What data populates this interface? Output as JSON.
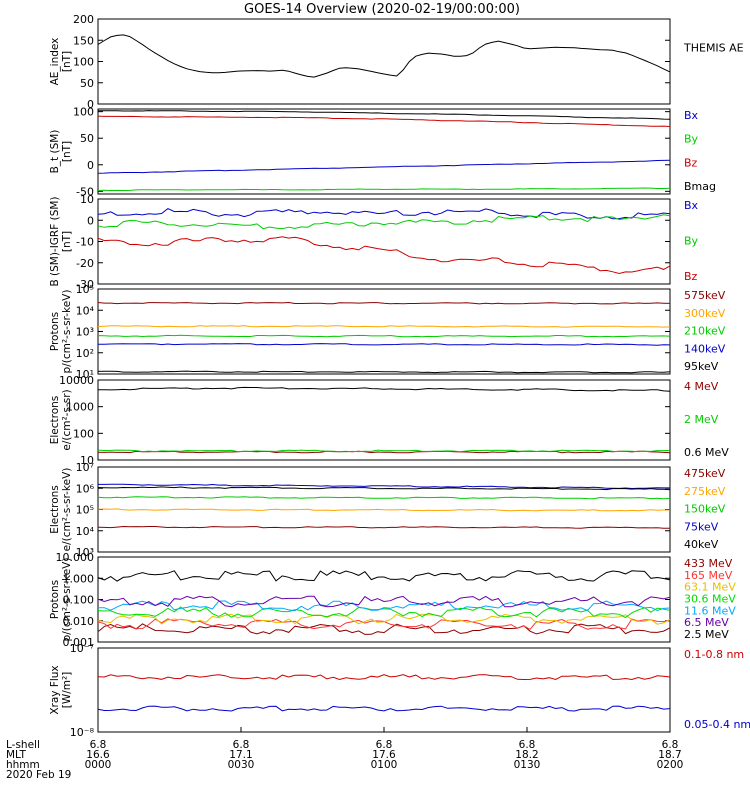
{
  "title": "GOES-14 Overview (2020-02-19/00:00:00)",
  "chart_data": [
    {
      "type": "line",
      "log": false,
      "ylabel": [
        "AE_index",
        "[nT]"
      ],
      "ylim": [
        0,
        200
      ],
      "yticks": [
        [
          0,
          "0"
        ],
        [
          50,
          "50"
        ],
        [
          100,
          "100"
        ],
        [
          150,
          "150"
        ],
        [
          200,
          "200"
        ]
      ],
      "series": [
        {
          "name": "THEMIS AE",
          "color": "#000000",
          "x": [
            0,
            3,
            6,
            9,
            12,
            15,
            18,
            21,
            24,
            27,
            30,
            33,
            36,
            39,
            42,
            45,
            48,
            51,
            54,
            57,
            60,
            63,
            66,
            69,
            72,
            75,
            78,
            81,
            84,
            87,
            90,
            93,
            96,
            99,
            102,
            105,
            108,
            111,
            114,
            117,
            120
          ],
          "y": [
            140,
            160,
            163,
            142,
            120,
            100,
            85,
            76,
            73,
            74,
            78,
            79,
            78,
            80,
            70,
            62,
            72,
            86,
            84,
            78,
            70,
            65,
            110,
            120,
            118,
            112,
            115,
            140,
            148,
            140,
            130,
            132,
            134,
            133,
            130,
            128,
            126,
            120,
            106,
            92,
            75
          ]
        }
      ]
    },
    {
      "type": "line",
      "log": false,
      "ylabel": [
        "B_t (SM)",
        "[nT]"
      ],
      "ylim": [
        -55,
        105
      ],
      "yticks": [
        [
          -50,
          "-50"
        ],
        [
          0,
          "0"
        ],
        [
          50,
          "50"
        ],
        [
          100,
          "100"
        ]
      ],
      "series": [
        {
          "name": "Bx",
          "color": "#0000cc",
          "x": [
            0,
            20,
            40,
            60,
            80,
            100,
            120
          ],
          "y": [
            -16,
            -12,
            -8,
            -4,
            0,
            4,
            8
          ]
        },
        {
          "name": "By",
          "color": "#00cc00",
          "x": [
            0,
            20,
            40,
            60,
            80,
            100,
            120
          ],
          "y": [
            -48,
            -47,
            -47,
            -46,
            -46,
            -45,
            -44
          ]
        },
        {
          "name": "Bz",
          "color": "#cc0000",
          "x": [
            0,
            20,
            40,
            60,
            80,
            100,
            120
          ],
          "y": [
            91,
            90,
            89,
            86,
            82,
            77,
            72
          ]
        },
        {
          "name": "Bmag",
          "color": "#000000",
          "x": [
            0,
            20,
            40,
            60,
            80,
            100,
            120
          ],
          "y": [
            102,
            101,
            100,
            97,
            94,
            90,
            86
          ]
        }
      ]
    },
    {
      "type": "line",
      "log": false,
      "ylabel": [
        "B (SM)-IGRF (SM)",
        "[nT]"
      ],
      "ylim": [
        -30,
        10
      ],
      "yticks": [
        [
          -30,
          "-30"
        ],
        [
          -20,
          "-20"
        ],
        [
          -10,
          "-10"
        ],
        [
          0,
          "0"
        ],
        [
          10,
          "10"
        ]
      ],
      "series": [
        {
          "name": "Bx",
          "color": "#0000cc",
          "x": [
            0,
            10,
            20,
            30,
            40,
            50,
            60,
            70,
            80,
            90,
            100,
            110,
            120
          ],
          "y": [
            2,
            4,
            4,
            3,
            4,
            4,
            3,
            4,
            4,
            3,
            2,
            2,
            2
          ]
        },
        {
          "name": "By",
          "color": "#00cc00",
          "x": [
            0,
            10,
            20,
            30,
            40,
            50,
            60,
            70,
            80,
            90,
            100,
            110,
            120
          ],
          "y": [
            -2,
            -1,
            -2,
            -3,
            -3,
            -2,
            -1,
            -1,
            0,
            1,
            1,
            0,
            3
          ]
        },
        {
          "name": "Bz",
          "color": "#cc0000",
          "x": [
            0,
            10,
            20,
            30,
            40,
            50,
            60,
            70,
            80,
            90,
            100,
            110,
            120
          ],
          "y": [
            -10,
            -11,
            -10,
            -9,
            -9,
            -12,
            -14,
            -18,
            -19,
            -20,
            -22,
            -24,
            -23
          ]
        }
      ]
    },
    {
      "type": "line",
      "log": true,
      "ylabel": [
        "Protons",
        "p/(cm²-s-sr-keV)"
      ],
      "ylim": [
        10,
        100000
      ],
      "yticks": [
        [
          10,
          "10¹"
        ],
        [
          100,
          "10²"
        ],
        [
          1000,
          "10³"
        ],
        [
          10000,
          "10⁴"
        ],
        [
          100000,
          "10⁵"
        ]
      ],
      "series": [
        {
          "name": "575keV",
          "color": "#8b0000",
          "x": [
            0,
            120
          ],
          "y": [
            22000,
            21000
          ]
        },
        {
          "name": "300keV",
          "color": "#ffa500",
          "x": [
            0,
            120
          ],
          "y": [
            1800,
            1700
          ]
        },
        {
          "name": "210keV",
          "color": "#00cc00",
          "x": [
            0,
            120
          ],
          "y": [
            620,
            600
          ]
        },
        {
          "name": "140keV",
          "color": "#0000cc",
          "x": [
            0,
            120
          ],
          "y": [
            260,
            240
          ]
        },
        {
          "name": "95keV",
          "color": "#000000",
          "x": [
            0,
            120
          ],
          "y": [
            13,
            12
          ]
        }
      ]
    },
    {
      "type": "line",
      "log": true,
      "ylabel": [
        "Electrons",
        "e/(cm²-s-sr)"
      ],
      "ylim": [
        10,
        10000
      ],
      "yticks": [
        [
          10,
          "10"
        ],
        [
          100,
          "100"
        ],
        [
          1000,
          "1000"
        ],
        [
          10000,
          "10000"
        ]
      ],
      "series": [
        {
          "name": "4 MeV",
          "color": "#8b0000",
          "x": [
            0,
            120
          ],
          "y": [
            20,
            20
          ]
        },
        {
          "name": "2 MeV",
          "color": "#00cc00",
          "x": [
            0,
            120
          ],
          "y": [
            22,
            22
          ]
        },
        {
          "name": "0.6 MeV",
          "color": "#000000",
          "x": [
            0,
            30,
            60,
            90,
            120
          ],
          "y": [
            4500,
            5000,
            4700,
            4400,
            4000
          ]
        }
      ]
    },
    {
      "type": "line",
      "log": true,
      "ylabel": [
        "Electrons",
        "e/(cm²-s-sr-keV)"
      ],
      "ylim": [
        1000,
        10000000
      ],
      "yticks": [
        [
          1000,
          "10³"
        ],
        [
          10000,
          "10⁴"
        ],
        [
          100000,
          "10⁵"
        ],
        [
          1000000,
          "10⁶"
        ],
        [
          10000000,
          "10⁷"
        ]
      ],
      "series": [
        {
          "name": "475keV",
          "color": "#8b0000",
          "x": [
            0,
            120
          ],
          "y": [
            15000,
            14000
          ]
        },
        {
          "name": "275keV",
          "color": "#ffa500",
          "x": [
            0,
            120
          ],
          "y": [
            100000,
            90000
          ]
        },
        {
          "name": "150keV",
          "color": "#00cc00",
          "x": [
            0,
            120
          ],
          "y": [
            380000,
            340000
          ]
        },
        {
          "name": "75keV",
          "color": "#0000cc",
          "x": [
            0,
            120
          ],
          "y": [
            1500000,
            1000000
          ]
        },
        {
          "name": "40keV",
          "color": "#000000",
          "x": [
            0,
            120
          ],
          "y": [
            1100000,
            900000
          ]
        }
      ]
    },
    {
      "type": "line",
      "log": true,
      "ylabel": [
        "Protons",
        "p/(cm²-s-sr-keV)"
      ],
      "ylim": [
        0.001,
        10
      ],
      "yticks": [
        [
          0.001,
          "0.001"
        ],
        [
          0.01,
          "0.010"
        ],
        [
          0.1,
          "0.100"
        ],
        [
          1,
          "1.000"
        ],
        [
          10,
          "10.000"
        ]
      ],
      "series": [
        {
          "name": "433 MeV",
          "color": "#8b0000",
          "x": [
            0,
            120
          ],
          "y": [
            0.004,
            0.004
          ]
        },
        {
          "name": "165 MeV",
          "color": "#ff3333",
          "x": [
            0,
            120
          ],
          "y": [
            0.007,
            0.007
          ]
        },
        {
          "name": "63.1 MeV",
          "color": "#e6c000",
          "x": [
            0,
            120
          ],
          "y": [
            0.012,
            0.012
          ]
        },
        {
          "name": "30.6 MeV",
          "color": "#00dd00",
          "x": [
            0,
            120
          ],
          "y": [
            0.025,
            0.025
          ]
        },
        {
          "name": "11.6 MeV",
          "color": "#00aaff",
          "x": [
            0,
            120
          ],
          "y": [
            0.05,
            0.05
          ]
        },
        {
          "name": "6.5 MeV",
          "color": "#6600aa",
          "x": [
            0,
            120
          ],
          "y": [
            0.08,
            0.08
          ]
        },
        {
          "name": "2.5 MeV",
          "color": "#000000",
          "x": [
            0,
            120
          ],
          "y": [
            1.3,
            1.3
          ]
        }
      ]
    },
    {
      "type": "line",
      "log": true,
      "ylabel": [
        "Xray Flux",
        "[W/m²]"
      ],
      "ylim": [
        1e-08,
        1e-07
      ],
      "yticks": [
        [
          1e-08,
          "10⁻⁸"
        ],
        [
          1e-07,
          "10⁻⁷"
        ]
      ],
      "series": [
        {
          "name": "0.1-0.8 nm",
          "color": "#cc0000",
          "x": [
            0,
            120
          ],
          "y": [
            4.5e-08,
            4.5e-08
          ]
        },
        {
          "name": "0.05-0.4 nm",
          "color": "#0000cc",
          "x": [
            0,
            120
          ],
          "y": [
            1.9e-08,
            1.9e-08
          ]
        }
      ]
    }
  ],
  "xaxis": {
    "row_labels": [
      "L-shell",
      "MLT",
      "hhmm",
      "2020 Feb 19"
    ],
    "ticks": [
      {
        "t": 0,
        "lines": [
          "6.8",
          "16.6",
          "0000"
        ]
      },
      {
        "t": 30,
        "lines": [
          "6.8",
          "17.1",
          "0030"
        ]
      },
      {
        "t": 60,
        "lines": [
          "6.8",
          "17.6",
          "0100"
        ]
      },
      {
        "t": 90,
        "lines": [
          "6.8",
          "18.2",
          "0130"
        ]
      },
      {
        "t": 120,
        "lines": [
          "6.8",
          "18.7",
          "0200"
        ]
      }
    ]
  }
}
